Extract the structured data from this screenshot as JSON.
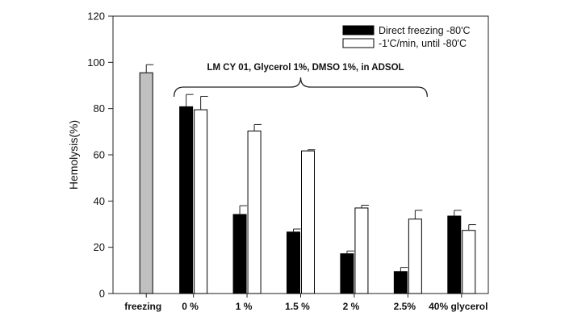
{
  "chart_data": {
    "type": "bar",
    "ylabel": "Hemolysis(%)",
    "xlabel": "",
    "ylim": [
      0,
      120
    ],
    "yticks": [
      0,
      20,
      40,
      60,
      80,
      100,
      120
    ],
    "categories": [
      "freezing",
      "0 %",
      "1 %",
      "1.5 %",
      "2 %",
      "2.5%",
      "40% glycerol"
    ],
    "series": [
      {
        "name": "Direct freezing -80'C",
        "color": "#000000",
        "values": [
          95.5,
          80.8,
          34.2,
          26.6,
          17.2,
          9.5,
          33.5
        ],
        "errors": [
          3.5,
          5.3,
          3.8,
          1.3,
          1.2,
          1.8,
          2.5
        ]
      },
      {
        "name": "-1'C/min, until -80'C",
        "color": "#ffffff",
        "values": [
          null,
          79.5,
          70.3,
          61.7,
          37.0,
          32.2,
          27.3
        ],
        "errors": [
          null,
          5.8,
          2.8,
          0.5,
          1.2,
          3.8,
          2.5
        ]
      }
    ],
    "single_bar_color": "#c0c0c0",
    "legend_position": "top-right",
    "annotation": "LM CY 01, Glycerol 1%, DMSO 1%, in ADSOL",
    "grid": false
  }
}
